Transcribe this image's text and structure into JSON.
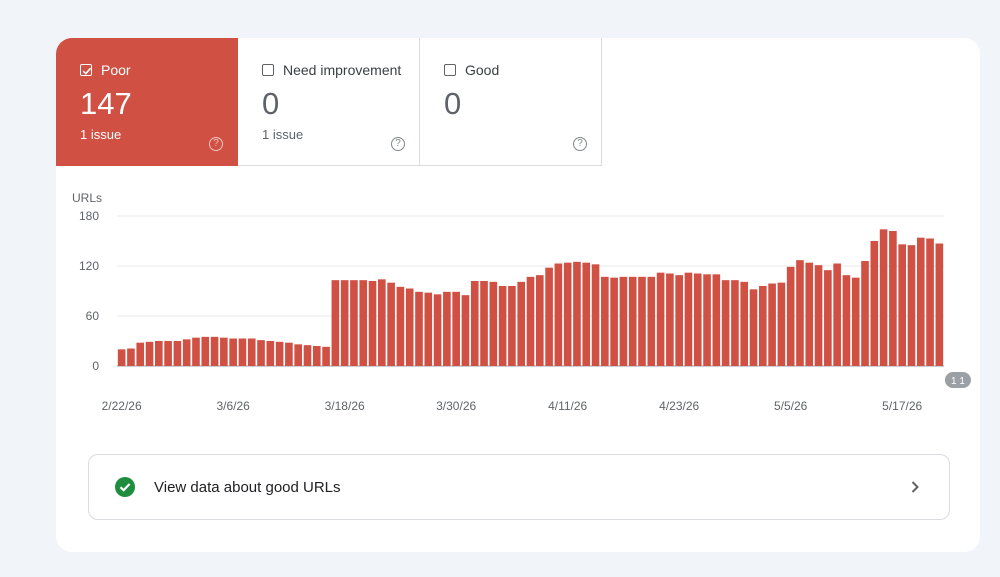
{
  "tabs": [
    {
      "label": "Poor",
      "value": "147",
      "sub": "1 issue",
      "checked": true,
      "color": "#d05043"
    },
    {
      "label": "Need improvement",
      "value": "0",
      "sub": "1 issue",
      "checked": false
    },
    {
      "label": "Good",
      "value": "0",
      "sub": "",
      "checked": false
    }
  ],
  "help_glyph": "?",
  "good_link": {
    "text": "View data about good URLs",
    "icon": "check-circle-icon",
    "arrow": "chevron-right-icon"
  },
  "chart_data": {
    "type": "bar",
    "ylabel": "URLs",
    "ylim": [
      0,
      180
    ],
    "yticks": [
      0,
      60,
      120,
      180
    ],
    "bar_color": "#d05043",
    "x_tick_labels": [
      "2/22/26",
      "3/6/26",
      "3/18/26",
      "3/30/26",
      "4/11/26",
      "4/23/26",
      "5/5/26",
      "5/17/26"
    ],
    "x_tick_bar_index": [
      0,
      12,
      24,
      36,
      48,
      60,
      72,
      84
    ],
    "annotation_marker": {
      "text": "1 1",
      "bar_index": 90
    },
    "values": [
      20,
      21,
      28,
      29,
      30,
      30,
      30,
      32,
      34,
      35,
      35,
      34,
      33,
      33,
      33,
      31,
      30,
      29,
      28,
      26,
      25,
      24,
      23,
      103,
      103,
      103,
      103,
      102,
      104,
      100,
      95,
      93,
      89,
      88,
      86,
      89,
      89,
      85,
      102,
      102,
      101,
      96,
      96,
      101,
      107,
      109,
      118,
      123,
      124,
      125,
      124,
      122,
      107,
      106,
      107,
      107,
      107,
      107,
      112,
      111,
      109,
      112,
      111,
      110,
      110,
      103,
      103,
      101,
      92,
      96,
      99,
      100,
      119,
      127,
      124,
      121,
      115,
      123,
      109,
      106,
      126,
      150,
      164,
      162,
      146,
      145,
      154,
      153,
      147
    ]
  }
}
